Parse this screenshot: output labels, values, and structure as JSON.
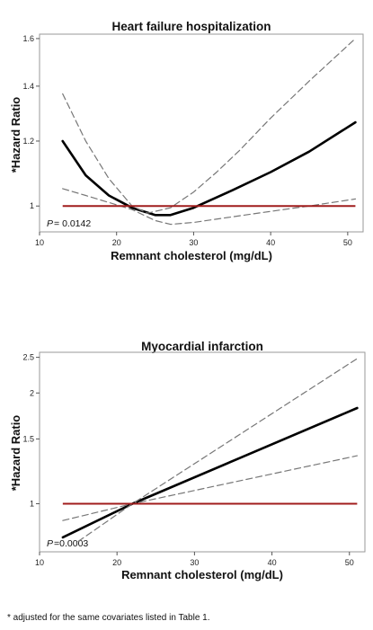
{
  "chart_data": [
    {
      "type": "line",
      "title": "Heart failure hospitalization",
      "xlabel": "Remnant cholesterol (mg/dL)",
      "ylabel": "*Hazard Ratio",
      "xlim": [
        10,
        52
      ],
      "ylim": [
        0.93,
        1.62
      ],
      "y_scale": "log",
      "xticks": [
        10,
        20,
        30,
        40,
        50
      ],
      "yticks": [
        1,
        1.2,
        1.4,
        1.6
      ],
      "ytick_labels": [
        "1",
        "1.2",
        "1.4",
        "1.6"
      ],
      "p_value_prefix": "P",
      "p_value_text": "= 0.0142",
      "reference_line": 1,
      "series": [
        {
          "style": "solid",
          "x": [
            13,
            16,
            19,
            22,
            25,
            27,
            30,
            35,
            40,
            45,
            51
          ],
          "y": [
            1.2,
            1.09,
            1.03,
            0.995,
            0.975,
            0.975,
            0.995,
            1.045,
            1.1,
            1.165,
            1.265
          ]
        },
        {
          "style": "dashed",
          "x": [
            13,
            16,
            19,
            22,
            24,
            27,
            30,
            33,
            36,
            40,
            45,
            51
          ],
          "y": [
            1.37,
            1.2,
            1.08,
            1.0,
            0.98,
            0.995,
            1.04,
            1.1,
            1.17,
            1.28,
            1.42,
            1.6
          ]
        },
        {
          "style": "dashed",
          "x": [
            13,
            16,
            19,
            22,
            25,
            27,
            30,
            35,
            40,
            45,
            51
          ],
          "y": [
            1.05,
            1.03,
            1.01,
            0.99,
            0.96,
            0.95,
            0.955,
            0.97,
            0.985,
            1.0,
            1.02
          ]
        }
      ]
    },
    {
      "type": "line",
      "title": "Myocardial infarction",
      "xlabel": "Remnant cholesterol (mg/dL)",
      "ylabel": "*Hazard Ratio",
      "xlim": [
        10,
        52
      ],
      "ylim": [
        0.74,
        2.58
      ],
      "y_scale": "log",
      "xticks": [
        10,
        20,
        30,
        40,
        50
      ],
      "yticks": [
        1,
        1.5,
        2,
        2.5
      ],
      "ytick_labels": [
        "1",
        "1.5",
        "2",
        "2.5"
      ],
      "p_value_prefix": "P",
      "p_value_text": "=0.0003",
      "reference_line": 1,
      "series": [
        {
          "style": "solid",
          "x": [
            13,
            22,
            51
          ],
          "y": [
            0.81,
            1.0,
            1.82
          ]
        },
        {
          "style": "dashed",
          "x": [
            15,
            22,
            51
          ],
          "y": [
            0.79,
            1.0,
            2.48
          ]
        },
        {
          "style": "dashed",
          "x": [
            13,
            22,
            51
          ],
          "y": [
            0.9,
            1.0,
            1.35
          ]
        }
      ]
    }
  ],
  "footnote": "* adjusted for the same covariates listed in Table 1.",
  "colors": {
    "reference_line": "#a01c1c",
    "fit_line": "#000000",
    "ci_line": "#777777",
    "frame": "#9a9a9a"
  }
}
